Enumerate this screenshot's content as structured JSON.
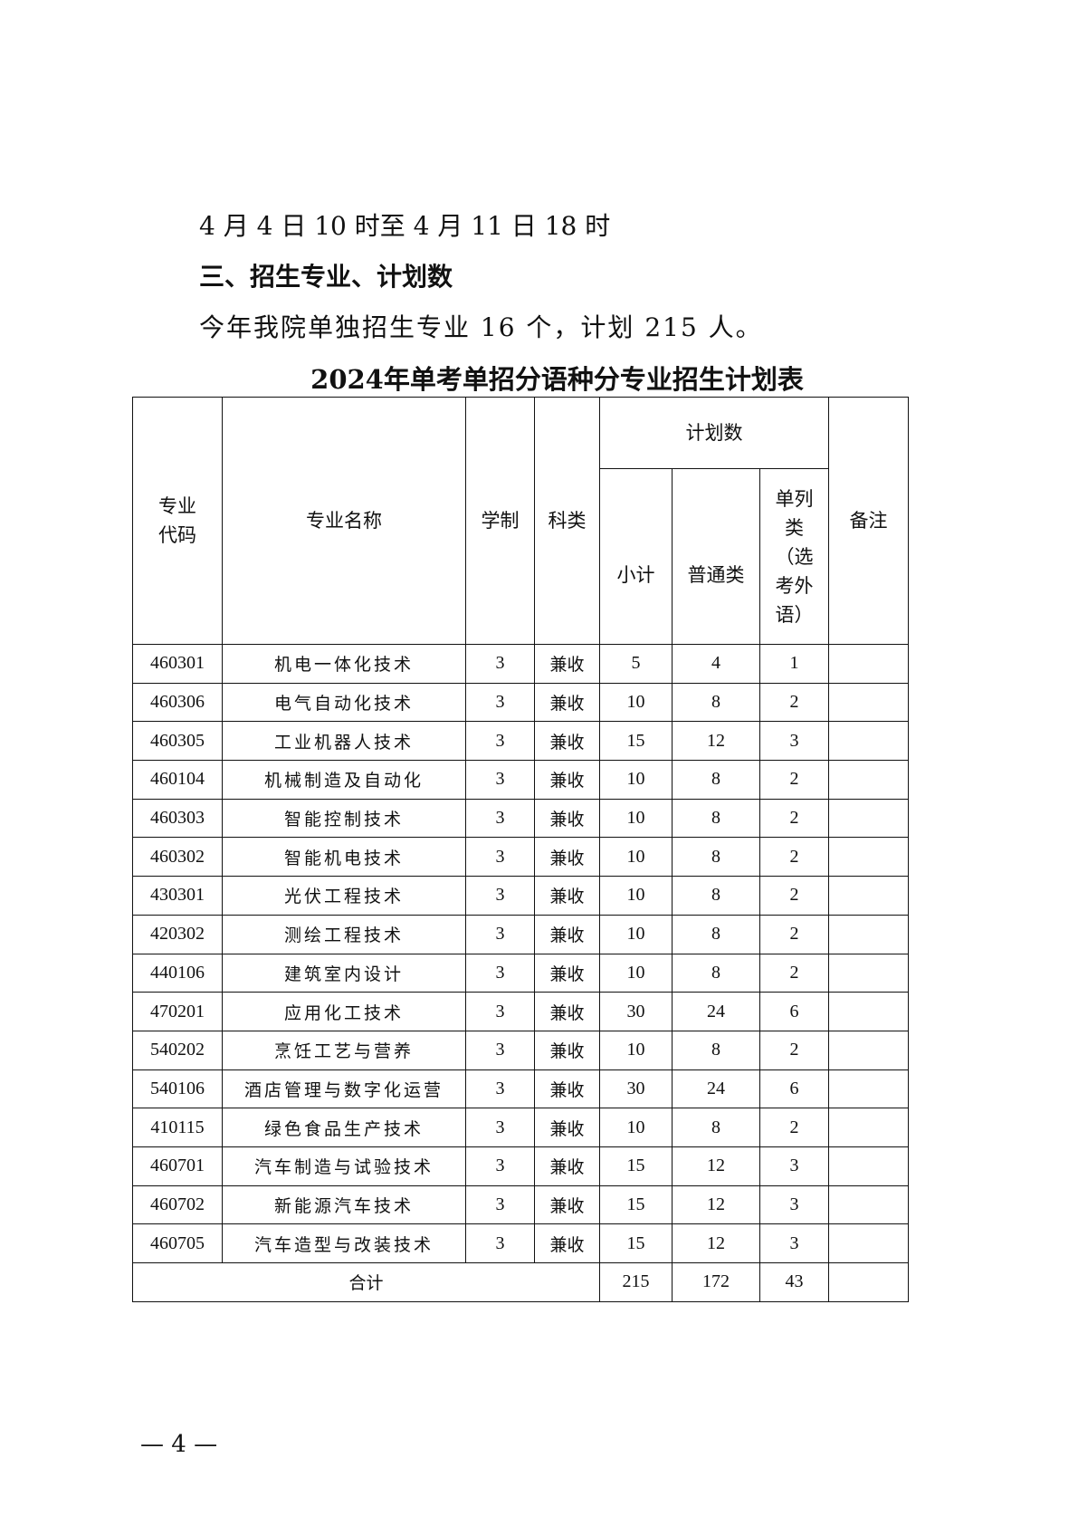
{
  "text": {
    "line1": "4 月 4 日 10 时至 4 月 11 日 18 时",
    "heading": "三、招生专业、计划数",
    "line3": "今年我院单独招生专业 16 个，计划 215 人。"
  },
  "table": {
    "title": "2024年单考单招分语种分专业招生计划表",
    "headers": {
      "code": "专业代码",
      "name": "专业名称",
      "duration": "学制",
      "category": "科类",
      "plan": "计划数",
      "subtotal": "小计",
      "general": "普通类",
      "separate": "单列类（选考外语）",
      "remark": "备注"
    },
    "rows": [
      [
        "460301",
        "机电一体化技术",
        "3",
        "兼收",
        "5",
        "4",
        "1",
        ""
      ],
      [
        "460306",
        "电气自动化技术",
        "3",
        "兼收",
        "10",
        "8",
        "2",
        ""
      ],
      [
        "460305",
        "工业机器人技术",
        "3",
        "兼收",
        "15",
        "12",
        "3",
        ""
      ],
      [
        "460104",
        "机械制造及自动化",
        "3",
        "兼收",
        "10",
        "8",
        "2",
        ""
      ],
      [
        "460303",
        "智能控制技术",
        "3",
        "兼收",
        "10",
        "8",
        "2",
        ""
      ],
      [
        "460302",
        "智能机电技术",
        "3",
        "兼收",
        "10",
        "8",
        "2",
        ""
      ],
      [
        "430301",
        "光伏工程技术",
        "3",
        "兼收",
        "10",
        "8",
        "2",
        ""
      ],
      [
        "420302",
        "测绘工程技术",
        "3",
        "兼收",
        "10",
        "8",
        "2",
        ""
      ],
      [
        "440106",
        "建筑室内设计",
        "3",
        "兼收",
        "10",
        "8",
        "2",
        ""
      ],
      [
        "470201",
        "应用化工技术",
        "3",
        "兼收",
        "30",
        "24",
        "6",
        ""
      ],
      [
        "540202",
        "烹饪工艺与营养",
        "3",
        "兼收",
        "10",
        "8",
        "2",
        ""
      ],
      [
        "540106",
        "酒店管理与数字化运营",
        "3",
        "兼收",
        "30",
        "24",
        "6",
        ""
      ],
      [
        "410115",
        "绿色食品生产技术",
        "3",
        "兼收",
        "10",
        "8",
        "2",
        ""
      ],
      [
        "460701",
        "汽车制造与试验技术",
        "3",
        "兼收",
        "15",
        "12",
        "3",
        ""
      ],
      [
        "460702",
        "新能源汽车技术",
        "3",
        "兼收",
        "15",
        "12",
        "3",
        ""
      ],
      [
        "460705",
        "汽车造型与改装技术",
        "3",
        "兼收",
        "15",
        "12",
        "3",
        ""
      ]
    ],
    "total": {
      "label": "合计",
      "subtotal": "215",
      "general": "172",
      "separate": "43",
      "remark": ""
    }
  },
  "footer": {
    "page": "— 4 —"
  }
}
